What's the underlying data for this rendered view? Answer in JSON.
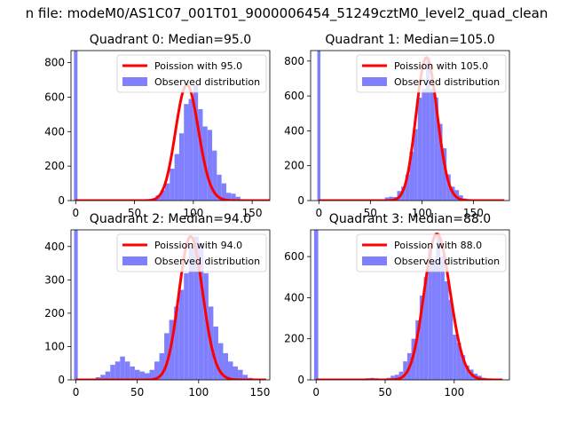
{
  "figure": {
    "suptitle": "n file: modeM0/AS1C07_001T01_9000006454_51249cztM0_level2_quad_clean",
    "colors": {
      "poisson": "#ff0000",
      "observed": "#8080ff"
    }
  },
  "chart_data": [
    {
      "type": "histogram",
      "title": "Quadrant 0: Median=95.0",
      "median": 95.0,
      "xlim": [
        -4,
        165
      ],
      "ylim": [
        0,
        870
      ],
      "xticks": [
        0,
        50,
        100,
        150
      ],
      "yticks": [
        0,
        200,
        400,
        600,
        800
      ],
      "zero_bin_count": 870,
      "bin_width": 4,
      "bins": [
        [
          40,
          2
        ],
        [
          44,
          2
        ],
        [
          48,
          5
        ],
        [
          52,
          5
        ],
        [
          56,
          4
        ],
        [
          60,
          6
        ],
        [
          64,
          12
        ],
        [
          68,
          30
        ],
        [
          72,
          60
        ],
        [
          76,
          100
        ],
        [
          80,
          185
        ],
        [
          84,
          270
        ],
        [
          88,
          390
        ],
        [
          92,
          560
        ],
        [
          96,
          590
        ],
        [
          100,
          670
        ],
        [
          104,
          530
        ],
        [
          108,
          430
        ],
        [
          112,
          410
        ],
        [
          116,
          290
        ],
        [
          120,
          150
        ],
        [
          124,
          100
        ],
        [
          128,
          45
        ],
        [
          132,
          40
        ],
        [
          136,
          22
        ],
        [
          140,
          8
        ],
        [
          144,
          4
        ]
      ],
      "series": [
        {
          "name": "Poission with 95.0",
          "kind": "line",
          "mean": 95.0,
          "x_range": [
            0,
            165
          ]
        },
        {
          "name": "Observed distribution",
          "kind": "bar"
        }
      ],
      "legend_position": "top-right"
    },
    {
      "type": "histogram",
      "title": "Quadrant 1: Median=105.0",
      "median": 105.0,
      "xlim": [
        -8,
        185
      ],
      "ylim": [
        0,
        860
      ],
      "xticks": [
        0,
        50,
        100,
        150
      ],
      "yticks": [
        0,
        200,
        400,
        600,
        800
      ],
      "zero_bin_count": 860,
      "bin_width": 4,
      "bins": [
        [
          52,
          3
        ],
        [
          56,
          5
        ],
        [
          60,
          4
        ],
        [
          64,
          18
        ],
        [
          68,
          22
        ],
        [
          72,
          20
        ],
        [
          76,
          55
        ],
        [
          80,
          80
        ],
        [
          84,
          150
        ],
        [
          88,
          280
        ],
        [
          92,
          410
        ],
        [
          96,
          590
        ],
        [
          100,
          640
        ],
        [
          104,
          820
        ],
        [
          108,
          640
        ],
        [
          112,
          590
        ],
        [
          116,
          440
        ],
        [
          120,
          300
        ],
        [
          124,
          150
        ],
        [
          128,
          80
        ],
        [
          132,
          60
        ],
        [
          136,
          30
        ],
        [
          140,
          12
        ],
        [
          144,
          6
        ],
        [
          148,
          3
        ]
      ],
      "series": [
        {
          "name": "Poission with 105.0",
          "kind": "line",
          "mean": 105.0,
          "x_range": [
            0,
            180
          ]
        },
        {
          "name": "Observed distribution",
          "kind": "bar"
        }
      ],
      "legend_position": "top-right"
    },
    {
      "type": "histogram",
      "title": "Quadrant 2: Median=94.0",
      "median": 94.0,
      "xlim": [
        -4,
        158
      ],
      "ylim": [
        0,
        450
      ],
      "xticks": [
        0,
        50,
        100,
        150
      ],
      "yticks": [
        0,
        100,
        200,
        300,
        400
      ],
      "zero_bin_count": 450,
      "bin_width": 4,
      "bins": [
        [
          16,
          8
        ],
        [
          20,
          15
        ],
        [
          24,
          25
        ],
        [
          28,
          45
        ],
        [
          32,
          55
        ],
        [
          36,
          70
        ],
        [
          40,
          55
        ],
        [
          44,
          40
        ],
        [
          48,
          30
        ],
        [
          52,
          25
        ],
        [
          56,
          20
        ],
        [
          60,
          30
        ],
        [
          64,
          55
        ],
        [
          68,
          80
        ],
        [
          72,
          140
        ],
        [
          76,
          180
        ],
        [
          80,
          220
        ],
        [
          84,
          270
        ],
        [
          88,
          320
        ],
        [
          92,
          400
        ],
        [
          96,
          430
        ],
        [
          100,
          410
        ],
        [
          104,
          320
        ],
        [
          108,
          220
        ],
        [
          112,
          160
        ],
        [
          116,
          110
        ],
        [
          120,
          80
        ],
        [
          124,
          55
        ],
        [
          128,
          40
        ],
        [
          132,
          30
        ],
        [
          136,
          15
        ],
        [
          140,
          6
        ]
      ],
      "series": [
        {
          "name": "Poission with 94.0",
          "kind": "line",
          "mean": 94.0,
          "x_range": [
            0,
            155
          ]
        },
        {
          "name": "Observed distribution",
          "kind": "bar"
        }
      ],
      "legend_position": "top-right"
    },
    {
      "type": "histogram",
      "title": "Quadrant 3: Median=88.0",
      "median": 88.0,
      "xlim": [
        -4,
        140
      ],
      "ylim": [
        0,
        730
      ],
      "xticks": [
        0,
        50,
        100
      ],
      "yticks": [
        0,
        200,
        400,
        600
      ],
      "zero_bin_count": 730,
      "bin_width": 3,
      "bins": [
        [
          33,
          5
        ],
        [
          36,
          8
        ],
        [
          39,
          10
        ],
        [
          42,
          8
        ],
        [
          45,
          5
        ],
        [
          48,
          6
        ],
        [
          51,
          10
        ],
        [
          54,
          20
        ],
        [
          57,
          25
        ],
        [
          60,
          40
        ],
        [
          63,
          90
        ],
        [
          66,
          130
        ],
        [
          69,
          200
        ],
        [
          72,
          290
        ],
        [
          75,
          410
        ],
        [
          78,
          500
        ],
        [
          81,
          640
        ],
        [
          84,
          580
        ],
        [
          87,
          710
        ],
        [
          90,
          600
        ],
        [
          93,
          480
        ],
        [
          96,
          390
        ],
        [
          99,
          220
        ],
        [
          102,
          180
        ],
        [
          105,
          120
        ],
        [
          108,
          70
        ],
        [
          111,
          50
        ],
        [
          114,
          30
        ],
        [
          117,
          20
        ],
        [
          120,
          10
        ]
      ],
      "series": [
        {
          "name": "Poission with 88.0",
          "kind": "line",
          "mean": 88.0,
          "x_range": [
            0,
            135
          ]
        },
        {
          "name": "Observed distribution",
          "kind": "bar"
        }
      ],
      "legend_position": "top-right"
    }
  ]
}
